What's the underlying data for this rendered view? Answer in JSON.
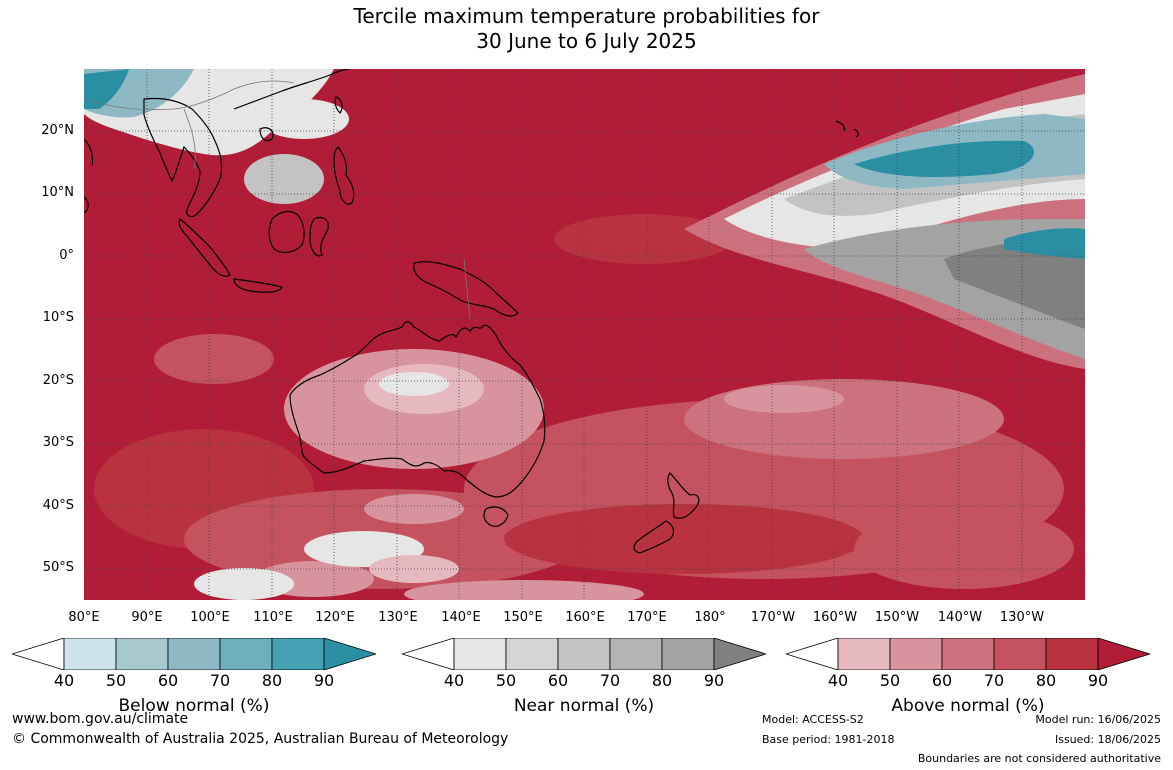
{
  "title": {
    "line1": "Tercile maximum temperature probabilities for",
    "line2": "30 June to 6 July 2025"
  },
  "latitude_labels": [
    "20°N",
    "10°N",
    "0°",
    "10°S",
    "20°S",
    "30°S",
    "40°S",
    "50°S"
  ],
  "longitude_labels": [
    "80°E",
    "90°E",
    "100°E",
    "110°E",
    "120°E",
    "130°E",
    "140°E",
    "150°E",
    "160°E",
    "170°E",
    "180°",
    "170°W",
    "160°W",
    "150°W",
    "140°W",
    "130°W"
  ],
  "colorbars": [
    {
      "title": "Below normal (%)",
      "ticks": [
        "40",
        "50",
        "60",
        "70",
        "80",
        "90"
      ],
      "colors": [
        "#cde3ea",
        "#a8c8cf",
        "#8fb8c5",
        "#6fb0bc",
        "#44a2b4",
        "#2a8fa3"
      ]
    },
    {
      "title": "Near normal (%)",
      "ticks": [
        "40",
        "50",
        "60",
        "70",
        "80",
        "90"
      ],
      "colors": [
        "#e6e6e6",
        "#d5d5d5",
        "#c3c3c3",
        "#b3b3b3",
        "#a3a3a3",
        "#808080"
      ]
    },
    {
      "title": "Above normal (%)",
      "ticks": [
        "40",
        "50",
        "60",
        "70",
        "80",
        "90"
      ],
      "colors": [
        "#e6b8bf",
        "#d8949e",
        "#cc727e",
        "#c4535f",
        "#b8333f",
        "#b11c37"
      ]
    }
  ],
  "map": {
    "ocean_color": "#b11c37",
    "land_outline_color": "#000000",
    "category_colors": {
      "above_90": "#b11c37",
      "above_80": "#b8333f",
      "above_70": "#c4535f",
      "above_60": "#cc727e",
      "above_50": "#d8949e",
      "near_60": "#c3c3c3",
      "near_80": "#a3a3a3",
      "near_90": "#808080",
      "below_60": "#8fb8c5",
      "below_90": "#2a8fa3",
      "low": "#e6e6e6"
    }
  },
  "footer": {
    "website": "www.bom.gov.au/climate",
    "copyright": "© Commonwealth of Australia 2025, Australian Bureau of Meteorology",
    "model": "Model: ACCESS-S2",
    "base_period": "Base period: 1981-2018",
    "model_run": "Model run: 16/06/2025",
    "issued": "Issued: 18/06/2025",
    "disclaimer": "Boundaries are not considered authoritative"
  }
}
